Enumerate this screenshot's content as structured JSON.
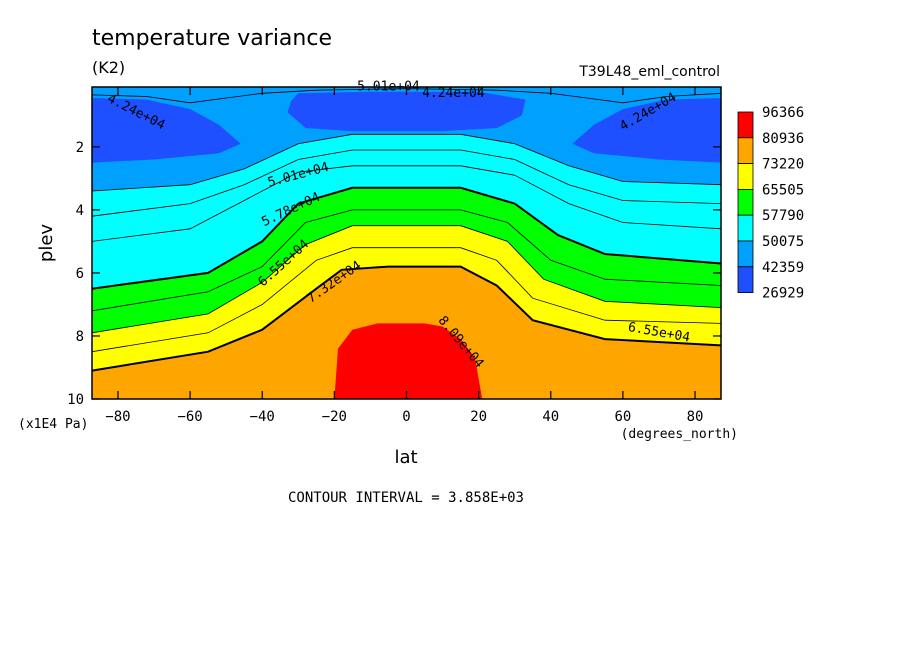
{
  "chart_data": {
    "type": "heatmap",
    "title": "temperature variance",
    "units": "(K2)",
    "run_label": "T39L48_eml_control",
    "xlabel": "lat",
    "xunits": "(degrees_north)",
    "ylabel": "plev",
    "yunits": "(x1E4 Pa)",
    "footer": "CONTOUR INTERVAL = 3.858E+03",
    "xlim": [
      -87.2,
      87.2
    ],
    "ylim": [
      10,
      0.1
    ],
    "x_ticks": [
      -80,
      -60,
      -40,
      -20,
      0,
      20,
      40,
      60,
      80
    ],
    "y_ticks": [
      2,
      4,
      6,
      8,
      10
    ],
    "colorbar": {
      "levels": [
        "96366",
        "80936",
        "73220",
        "65505",
        "57790",
        "50075",
        "42359",
        "26929"
      ],
      "colors": [
        "#ff0000",
        "#ffa500",
        "#ffff00",
        "#00ff00",
        "#00ffff",
        "#00a0ff",
        "#1e50ff"
      ]
    },
    "background_fill": "#00a0ff",
    "contour_lines": [
      {
        "value": 73220,
        "bold": true,
        "points": [
          [
            -87.2,
            9.1
          ],
          [
            -55,
            8.5
          ],
          [
            -40,
            7.8
          ],
          [
            -25,
            6.5
          ],
          [
            -18,
            5.9
          ],
          [
            -5,
            5.8
          ],
          [
            15,
            5.8
          ],
          [
            25,
            6.4
          ],
          [
            35,
            7.5
          ],
          [
            55,
            8.1
          ],
          [
            87.2,
            8.3
          ]
        ]
      },
      {
        "value": 69362,
        "bold": false,
        "points": [
          [
            -87.2,
            8.5
          ],
          [
            -55,
            7.9
          ],
          [
            -40,
            7.0
          ],
          [
            -25,
            5.6
          ],
          [
            -15,
            5.2
          ],
          [
            15,
            5.2
          ],
          [
            25,
            5.6
          ],
          [
            35,
            6.8
          ],
          [
            55,
            7.5
          ],
          [
            87.2,
            7.6
          ]
        ]
      },
      {
        "value": 65505,
        "bold": false,
        "points": [
          [
            -87.2,
            7.9
          ],
          [
            -55,
            7.3
          ],
          [
            -40,
            6.3
          ],
          [
            -28,
            5.1
          ],
          [
            -15,
            4.5
          ],
          [
            15,
            4.5
          ],
          [
            28,
            5.0
          ],
          [
            38,
            6.2
          ],
          [
            55,
            6.9
          ],
          [
            87.2,
            7.1
          ]
        ]
      },
      {
        "value": 61647,
        "bold": false,
        "points": [
          [
            -87.2,
            7.2
          ],
          [
            -55,
            6.6
          ],
          [
            -40,
            5.8
          ],
          [
            -28,
            4.4
          ],
          [
            -15,
            4.0
          ],
          [
            15,
            4.0
          ],
          [
            28,
            4.4
          ],
          [
            40,
            5.6
          ],
          [
            55,
            6.2
          ],
          [
            87.2,
            6.4
          ]
        ]
      },
      {
        "value": 57790,
        "bold": true,
        "points": [
          [
            -87.2,
            6.5
          ],
          [
            -55,
            6.0
          ],
          [
            -40,
            5.0
          ],
          [
            -30,
            3.8
          ],
          [
            -15,
            3.3
          ],
          [
            15,
            3.3
          ],
          [
            30,
            3.8
          ],
          [
            42,
            4.8
          ],
          [
            55,
            5.4
          ],
          [
            87.2,
            5.7
          ]
        ]
      },
      {
        "value": 53932,
        "bold": false,
        "points": [
          [
            -87.2,
            5.0
          ],
          [
            -60,
            4.6
          ],
          [
            -45,
            3.7
          ],
          [
            -30,
            2.8
          ],
          [
            -15,
            2.6
          ],
          [
            15,
            2.6
          ],
          [
            30,
            2.9
          ],
          [
            45,
            3.8
          ],
          [
            60,
            4.4
          ],
          [
            87.2,
            4.6
          ]
        ]
      },
      {
        "value": 50075,
        "bold": false,
        "points": [
          [
            -87.2,
            4.2
          ],
          [
            -60,
            3.8
          ],
          [
            -45,
            3.2
          ],
          [
            -30,
            2.4
          ],
          [
            -15,
            2.1
          ],
          [
            15,
            2.1
          ],
          [
            30,
            2.4
          ],
          [
            45,
            3.2
          ],
          [
            60,
            3.7
          ],
          [
            87.2,
            3.8
          ]
        ]
      },
      {
        "value": 46217,
        "bold": false,
        "points": [
          [
            -87.2,
            3.4
          ],
          [
            -60,
            3.2
          ],
          [
            -45,
            2.7
          ],
          [
            -30,
            1.9
          ],
          [
            -15,
            1.6
          ],
          [
            15,
            1.6
          ],
          [
            30,
            1.9
          ],
          [
            45,
            2.6
          ],
          [
            60,
            3.1
          ],
          [
            87.2,
            3.2
          ]
        ]
      },
      {
        "value": 46217,
        "bold": false,
        "points": [
          [
            -87.2,
            0.35
          ],
          [
            -72,
            0.4
          ],
          [
            -60,
            0.6
          ],
          [
            -50,
            0.45
          ],
          [
            -40,
            0.3
          ],
          [
            -25,
            0.2
          ],
          [
            0,
            0.15
          ],
          [
            25,
            0.2
          ],
          [
            40,
            0.3
          ],
          [
            50,
            0.45
          ],
          [
            60,
            0.6
          ],
          [
            72,
            0.4
          ],
          [
            87.2,
            0.3
          ]
        ]
      }
    ],
    "filled_regions": [
      {
        "level": "50075-57790",
        "points": [
          [
            -87.2,
            3.4
          ],
          [
            -60,
            3.2
          ],
          [
            -45,
            2.7
          ],
          [
            -30,
            1.9
          ],
          [
            -15,
            1.6
          ],
          [
            15,
            1.6
          ],
          [
            30,
            1.9
          ],
          [
            45,
            2.6
          ],
          [
            60,
            3.1
          ],
          [
            87.2,
            3.2
          ],
          [
            87.2,
            5.7
          ],
          [
            55,
            5.4
          ],
          [
            42,
            4.8
          ],
          [
            30,
            3.8
          ],
          [
            15,
            3.3
          ],
          [
            -15,
            3.3
          ],
          [
            -30,
            3.8
          ],
          [
            -40,
            5.0
          ],
          [
            -55,
            6.0
          ],
          [
            -87.2,
            6.5
          ]
        ]
      },
      {
        "level": "57790-65505",
        "points": [
          [
            -87.2,
            6.5
          ],
          [
            -55,
            6.0
          ],
          [
            -40,
            5.0
          ],
          [
            -30,
            3.8
          ],
          [
            -15,
            3.3
          ],
          [
            15,
            3.3
          ],
          [
            30,
            3.8
          ],
          [
            42,
            4.8
          ],
          [
            55,
            5.4
          ],
          [
            87.2,
            5.7
          ],
          [
            87.2,
            7.1
          ],
          [
            55,
            6.9
          ],
          [
            38,
            6.2
          ],
          [
            28,
            5.0
          ],
          [
            15,
            4.5
          ],
          [
            -15,
            4.5
          ],
          [
            -28,
            5.1
          ],
          [
            -40,
            6.3
          ],
          [
            -55,
            7.3
          ],
          [
            -87.2,
            7.9
          ]
        ]
      },
      {
        "level": "65505-73220",
        "points": [
          [
            -87.2,
            7.9
          ],
          [
            -55,
            7.3
          ],
          [
            -40,
            6.3
          ],
          [
            -28,
            5.1
          ],
          [
            -15,
            4.5
          ],
          [
            15,
            4.5
          ],
          [
            28,
            5.0
          ],
          [
            38,
            6.2
          ],
          [
            55,
            6.9
          ],
          [
            87.2,
            7.1
          ],
          [
            87.2,
            8.3
          ],
          [
            55,
            8.1
          ],
          [
            35,
            7.5
          ],
          [
            25,
            6.4
          ],
          [
            15,
            5.8
          ],
          [
            -5,
            5.8
          ],
          [
            -18,
            5.9
          ],
          [
            -25,
            6.5
          ],
          [
            -40,
            7.8
          ],
          [
            -55,
            8.5
          ],
          [
            -87.2,
            9.1
          ]
        ]
      },
      {
        "level": "73220-80936",
        "points": [
          [
            -87.2,
            9.1
          ],
          [
            -55,
            8.5
          ],
          [
            -40,
            7.8
          ],
          [
            -25,
            6.5
          ],
          [
            -18,
            5.9
          ],
          [
            -5,
            5.8
          ],
          [
            15,
            5.8
          ],
          [
            25,
            6.4
          ],
          [
            35,
            7.5
          ],
          [
            55,
            8.1
          ],
          [
            87.2,
            8.3
          ],
          [
            87.2,
            10
          ],
          [
            -87.2,
            10
          ]
        ]
      },
      {
        "level": "80936-96366",
        "points": [
          [
            -20,
            10
          ],
          [
            -19,
            8.4
          ],
          [
            -15,
            7.8
          ],
          [
            -8,
            7.6
          ],
          [
            5,
            7.6
          ],
          [
            10,
            7.7
          ],
          [
            15,
            8.1
          ],
          [
            19,
            8.7
          ],
          [
            21,
            10
          ]
        ]
      },
      {
        "level": "26929-42359",
        "points": [
          [
            -87.2,
            0.45
          ],
          [
            -72,
            0.5
          ],
          [
            -60,
            0.8
          ],
          [
            -52,
            1.3
          ],
          [
            -46,
            1.9
          ],
          [
            -52,
            2.2
          ],
          [
            -70,
            2.4
          ],
          [
            -87.2,
            2.5
          ]
        ]
      },
      {
        "level": "26929-42359",
        "points": [
          [
            87.2,
            0.45
          ],
          [
            72,
            0.5
          ],
          [
            60,
            0.8
          ],
          [
            52,
            1.3
          ],
          [
            46,
            1.9
          ],
          [
            52,
            2.2
          ],
          [
            70,
            2.4
          ],
          [
            87.2,
            2.5
          ]
        ]
      },
      {
        "level": "26929-42359",
        "points": [
          [
            -32,
            0.55
          ],
          [
            -30,
            0.3
          ],
          [
            -10,
            0.25
          ],
          [
            20,
            0.25
          ],
          [
            33,
            0.5
          ],
          [
            32,
            1.0
          ],
          [
            25,
            1.4
          ],
          [
            10,
            1.5
          ],
          [
            -15,
            1.5
          ],
          [
            -28,
            1.4
          ],
          [
            -33,
            0.9
          ]
        ]
      }
    ],
    "contour_labels": [
      {
        "text": "4.24e+04",
        "x": -75,
        "y": 0.9,
        "angle": 27
      },
      {
        "text": "5.01e+04",
        "x": -5,
        "y": 0.1,
        "angle": 0
      },
      {
        "text": "4.24e+04",
        "x": 13,
        "y": 0.3,
        "angle": 0
      },
      {
        "text": "4.24e+04",
        "x": 67,
        "y": 0.9,
        "angle": -30
      },
      {
        "text": "5.01e+04",
        "x": -30,
        "y": 2.9,
        "angle": -15
      },
      {
        "text": "5.78e+04",
        "x": -32,
        "y": 4.0,
        "angle": -25
      },
      {
        "text": "6.55e+04",
        "x": -34,
        "y": 5.7,
        "angle": -42
      },
      {
        "text": "7.32e+04",
        "x": -20,
        "y": 6.3,
        "angle": -35
      },
      {
        "text": "8.09e+04",
        "x": 15,
        "y": 8.2,
        "angle": 50
      },
      {
        "text": "6.55e+04",
        "x": 70,
        "y": 7.9,
        "angle": 10
      }
    ]
  }
}
